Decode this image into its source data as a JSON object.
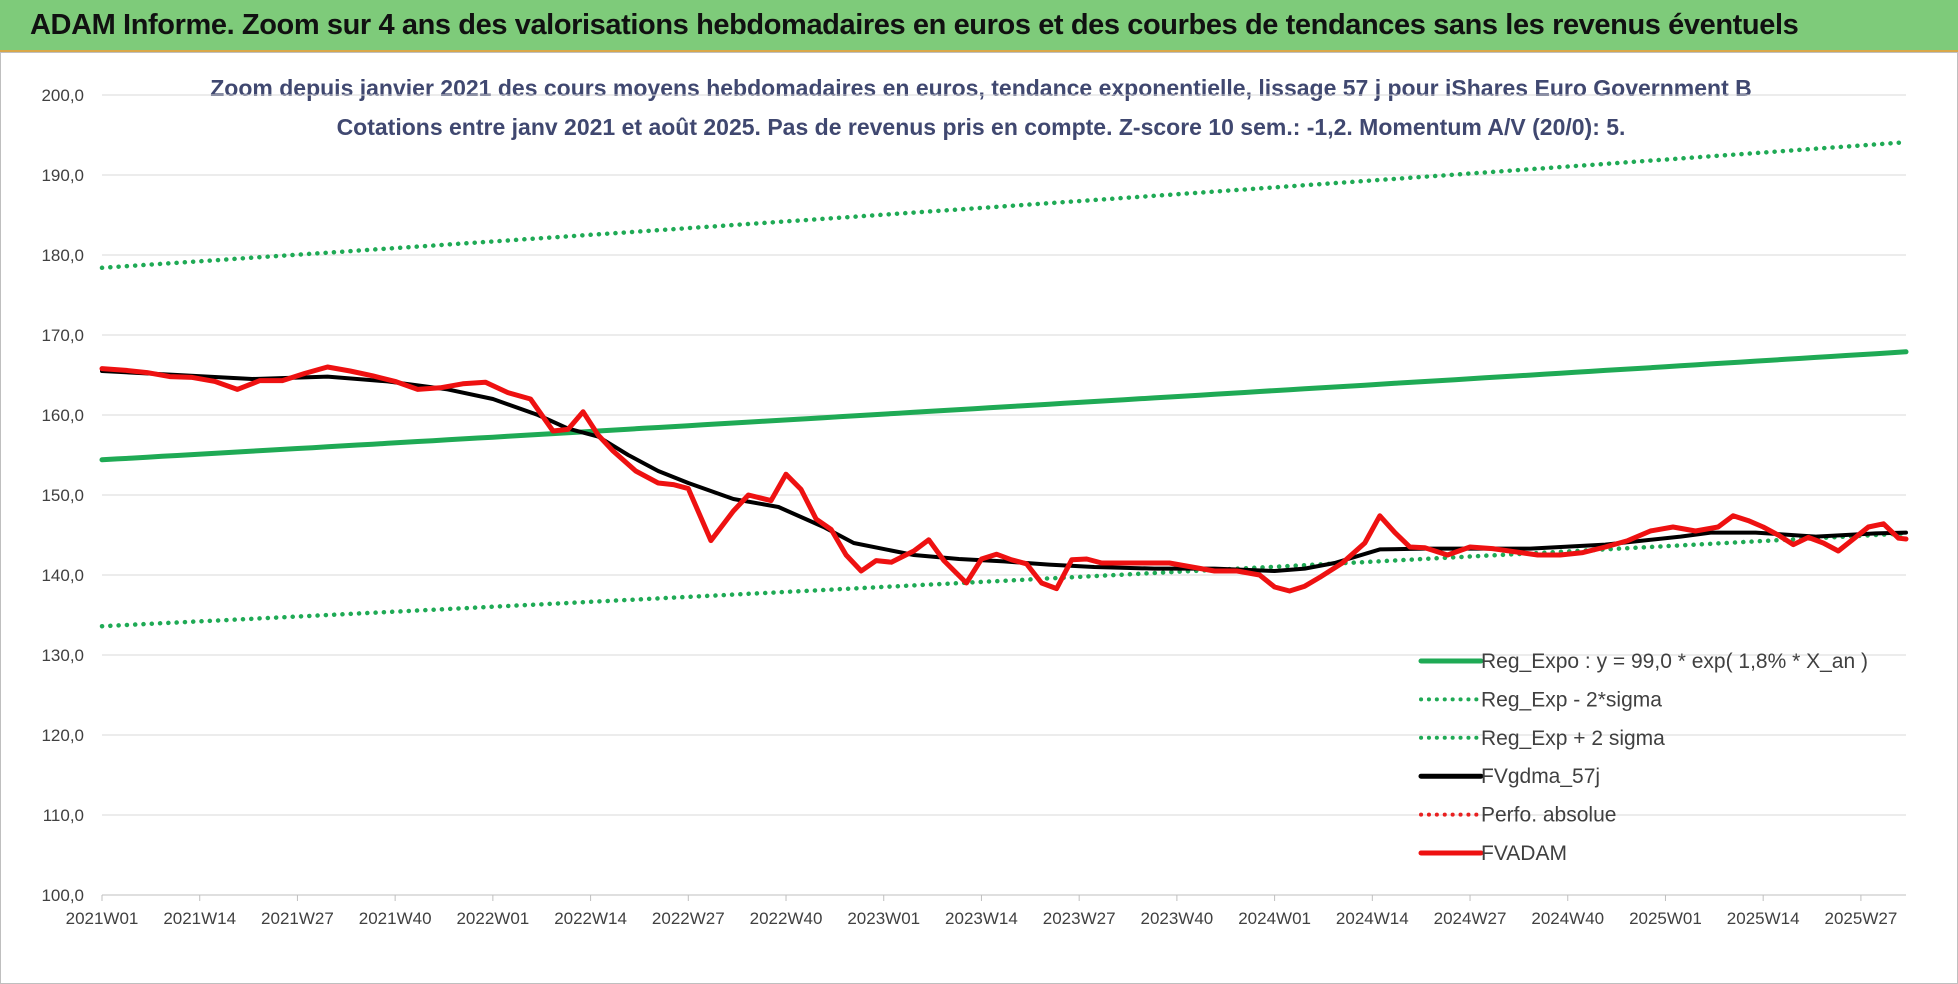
{
  "header": {
    "title": "ADAM Informe. Zoom sur 4 ans des valorisations hebdomadaires en euros et des courbes de tendances sans les revenus éventuels"
  },
  "chart_data": {
    "type": "line",
    "title_line1": "Zoom depuis janvier 2021 des cours moyens hebdomadaires en euros, tendance exponentielle, lissage 57 j pour iShares Euro Government B",
    "title_line2": "Cotations entre janv 2021 et août 2025.  Pas de revenus pris en compte. Z-score 10 sem.: -1,2. Momentum A/V (20/0): 5.",
    "xlabel": "",
    "ylabel": "",
    "ylim": [
      100,
      200
    ],
    "y_ticks": [
      "100,0",
      "110,0",
      "120,0",
      "130,0",
      "140,0",
      "150,0",
      "160,0",
      "170,0",
      "180,0",
      "190,0",
      "200,0"
    ],
    "x_ticks": [
      "2021W01",
      "2021W14",
      "2021W27",
      "2021W40",
      "2022W01",
      "2022W14",
      "2022W27",
      "2022W40",
      "2023W01",
      "2023W14",
      "2023W27",
      "2023W40",
      "2024W01",
      "2024W14",
      "2024W27",
      "2024W40",
      "2025W01",
      "2025W14",
      "2025W27"
    ],
    "grid": "horizontal",
    "legend_position": "bottom-right",
    "week_count": 241,
    "series": [
      {
        "name": "Reg_Expo : y = 99,0 * exp( 1,8% *  X_an )",
        "style": "solid",
        "color": "#1faa55",
        "x": [
          0,
          240
        ],
        "y": [
          154.4,
          167.9
        ]
      },
      {
        "name": "Reg_Exp - 2*sigma",
        "style": "dotted",
        "color": "#1faa55",
        "x": [
          0,
          240
        ],
        "y": [
          133.6,
          145.2
        ]
      },
      {
        "name": "Reg_Exp + 2 sigma",
        "style": "dotted",
        "color": "#1faa55",
        "x": [
          0,
          240
        ],
        "y": [
          178.4,
          194.1
        ]
      },
      {
        "name": "FVgdma_57j",
        "style": "solid",
        "color": "#000000",
        "x": [
          0,
          10,
          20,
          30,
          38,
          46,
          52,
          58,
          62,
          66,
          70,
          74,
          78,
          84,
          90,
          96,
          100,
          108,
          114,
          120,
          126,
          132,
          140,
          148,
          156,
          160,
          164,
          170,
          176,
          180,
          190,
          200,
          210,
          214,
          220,
          228,
          236,
          240
        ],
        "y": [
          165.5,
          165.0,
          164.5,
          164.8,
          164.2,
          163.2,
          162.0,
          160.0,
          158.3,
          157.3,
          155.0,
          153.0,
          151.5,
          149.5,
          148.5,
          146.0,
          144.0,
          142.5,
          142.0,
          141.7,
          141.3,
          141.0,
          140.8,
          140.8,
          140.5,
          140.8,
          141.5,
          143.2,
          143.3,
          143.3,
          143.3,
          143.8,
          144.8,
          145.3,
          145.3,
          144.8,
          145.2,
          145.3
        ]
      },
      {
        "name": "Perfo. absolue",
        "style": "dotted",
        "color": "#e82020",
        "x": [],
        "y": []
      },
      {
        "name": "FVADAM",
        "style": "solid",
        "color": "#ee1111",
        "x": [
          0,
          3,
          6,
          9,
          12,
          15,
          18,
          21,
          24,
          27,
          30,
          33,
          36,
          39,
          42,
          45,
          48,
          51,
          54,
          57,
          60,
          62,
          64,
          66,
          68,
          71,
          74,
          76,
          78,
          81,
          84,
          86,
          89,
          91,
          93,
          95,
          97,
          99,
          101,
          103,
          105,
          108,
          110,
          112,
          115,
          117,
          119,
          121,
          123,
          125,
          127,
          129,
          131,
          133,
          136,
          139,
          142,
          145,
          148,
          151,
          154,
          156,
          158,
          160,
          162,
          165,
          168,
          170,
          172,
          174,
          176,
          179,
          182,
          185,
          188,
          191,
          194,
          197,
          200,
          203,
          206,
          209,
          212,
          215,
          217,
          219,
          221,
          223,
          225,
          227,
          229,
          231,
          233,
          235,
          237,
          239,
          240
        ],
        "y": [
          165.8,
          165.6,
          165.3,
          164.8,
          164.7,
          164.2,
          163.2,
          164.3,
          164.3,
          165.2,
          166.0,
          165.5,
          164.9,
          164.2,
          163.2,
          163.4,
          163.9,
          164.1,
          162.8,
          162.0,
          158.0,
          158.2,
          160.4,
          157.5,
          155.5,
          153.0,
          151.5,
          151.3,
          150.8,
          144.3,
          148.0,
          150.0,
          149.3,
          152.6,
          150.7,
          147.0,
          145.7,
          142.5,
          140.5,
          141.8,
          141.6,
          143.0,
          144.4,
          141.8,
          139.0,
          142.0,
          142.6,
          141.9,
          141.4,
          139.0,
          138.3,
          141.9,
          142.0,
          141.5,
          141.5,
          141.5,
          141.5,
          141.0,
          140.5,
          140.5,
          140.0,
          138.5,
          138.0,
          138.6,
          139.7,
          141.5,
          144.0,
          147.4,
          145.3,
          143.5,
          143.4,
          142.5,
          143.5,
          143.3,
          142.9,
          142.5,
          142.5,
          142.8,
          143.5,
          144.3,
          145.5,
          146.0,
          145.5,
          146.0,
          147.4,
          146.8,
          146.0,
          145.0,
          143.8,
          144.7,
          144.0,
          143.0,
          144.5,
          146.0,
          146.4,
          144.6,
          144.5
        ]
      }
    ]
  }
}
